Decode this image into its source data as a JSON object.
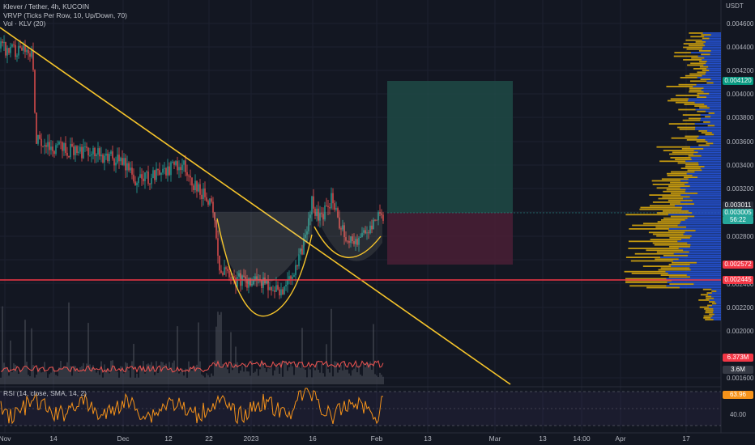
{
  "legend": {
    "symbol": "Klever / Tether, 4h, KUCOIN",
    "vrvp": "VRVP (Ticks Per Row, 10, Up/Down, 70)",
    "volume": "Vol · KLV (20)",
    "rsi": "RSI (14, close, SMA, 14, 2)"
  },
  "price_axis": {
    "currency": "USDT",
    "ticks": [
      "0.004600",
      "0.004400",
      "0.004200",
      "0.004000",
      "0.003800",
      "0.003600",
      "0.003400",
      "0.003200",
      "0.002800",
      "0.002400",
      "0.002200",
      "0.002000",
      "0.001600"
    ]
  },
  "price_tags": [
    {
      "label": "0.004120",
      "bg": "#089981"
    },
    {
      "label": "0.003011",
      "bg": "#2a2e39"
    },
    {
      "label": "0.003005",
      "bg": "#26a69a"
    },
    {
      "label": "56:22",
      "bg": "#26a69a"
    },
    {
      "label": "0.002572",
      "bg": "#f23645"
    },
    {
      "label": "0.002445",
      "bg": "#f23645"
    },
    {
      "label": "6.373M",
      "bg": "#f23645"
    },
    {
      "label": "3.6M",
      "bg": "#363a45"
    },
    {
      "label": "63.96",
      "bg": "#f7931a"
    },
    {
      "label": "40.00",
      "bg": "transparent"
    }
  ],
  "time_axis": {
    "ticks": [
      "Nov",
      "14",
      "Dec",
      "12",
      "22",
      "2023",
      "16",
      "Feb",
      "13",
      "Mar",
      "13",
      "14:00",
      "Apr",
      "17"
    ]
  },
  "colors": {
    "background": "#131722",
    "up": "#26a69a",
    "down": "#ef5350",
    "trendline": "#f7c52b",
    "support": "#f23645",
    "rsi": "#f7931a",
    "profit_zone": "#1e4a45",
    "loss_zone": "#4a1f35",
    "vp_up": "#2962ff",
    "vp_down": "#f0b90b"
  }
}
